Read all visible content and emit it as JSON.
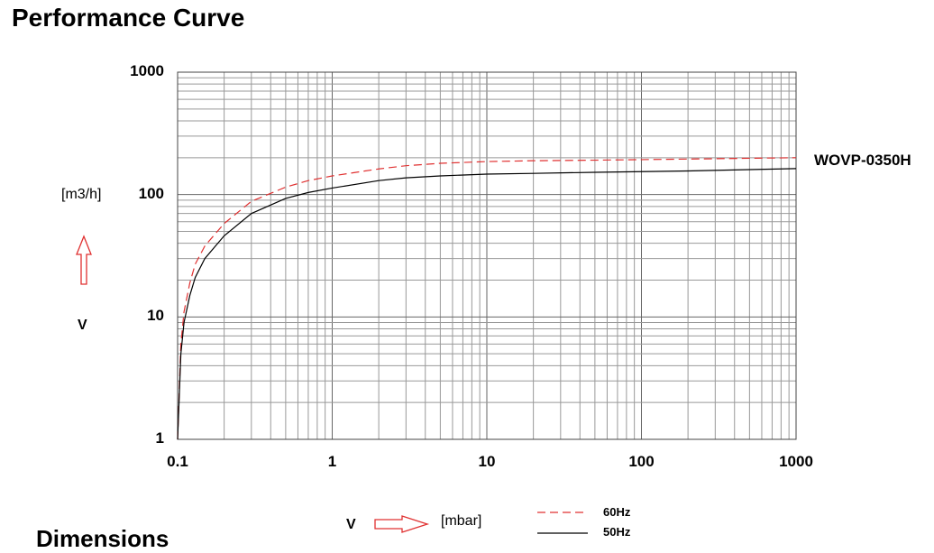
{
  "page": {
    "title": "Performance Curve",
    "bottom_heading": "Dimensions"
  },
  "chart_data": {
    "type": "line",
    "x_scale": "log",
    "y_scale": "log",
    "xlim": [
      0.1,
      1000
    ],
    "ylim": [
      1,
      1000
    ],
    "x_ticks": [
      "0.1",
      "1",
      "10",
      "100",
      "1000"
    ],
    "y_ticks": [
      "1",
      "10",
      "100",
      "1000"
    ],
    "xlabel": {
      "symbol": "V",
      "unit": "[mbar]"
    },
    "ylabel": {
      "symbol": "V",
      "unit": "[m3/h]"
    },
    "grid": true,
    "series_label": "WOVP-0350H",
    "legend_position": "bottom-right",
    "series": [
      {
        "name": "60Hz",
        "style": "dashed",
        "color": "#e03030",
        "x": [
          0.1,
          0.105,
          0.11,
          0.12,
          0.13,
          0.15,
          0.2,
          0.3,
          0.5,
          0.7,
          1,
          2,
          3,
          5,
          10,
          20,
          50,
          100,
          200,
          500,
          1000
        ],
        "y": [
          1,
          6,
          11,
          19,
          27,
          38,
          58,
          88,
          115,
          130,
          142,
          162,
          172,
          180,
          186,
          189,
          191,
          193,
          195,
          198,
          200
        ]
      },
      {
        "name": "50Hz",
        "style": "solid",
        "color": "#000000",
        "x": [
          0.1,
          0.105,
          0.11,
          0.12,
          0.13,
          0.15,
          0.2,
          0.3,
          0.5,
          0.7,
          1,
          2,
          3,
          5,
          10,
          20,
          50,
          100,
          200,
          500,
          1000
        ],
        "y": [
          1,
          5,
          9,
          15,
          21,
          30,
          46,
          70,
          93,
          104,
          113,
          130,
          137,
          142,
          147,
          149,
          152,
          154,
          156,
          160,
          163
        ]
      }
    ]
  }
}
